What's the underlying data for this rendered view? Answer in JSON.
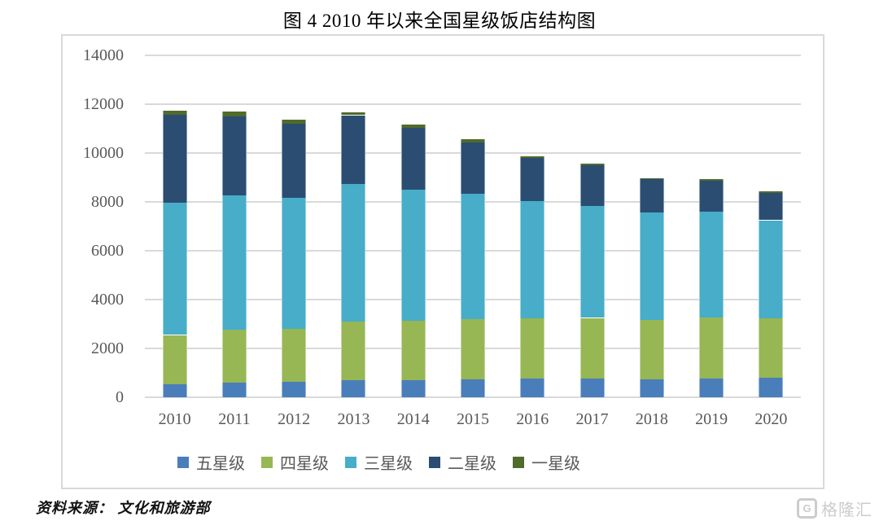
{
  "title": "图 4  2010 年以来全国星级饭店结构图",
  "source_label": "资料来源： 文化和旅游部",
  "watermark": {
    "icon": "G",
    "text": "格隆汇"
  },
  "colors": {
    "grid": "#d9d9d9",
    "frame_border": "#d9d9d9",
    "axis_text": "#595959",
    "watermark_gray": "#cccccc"
  },
  "chart_data": {
    "type": "bar",
    "stacked": true,
    "title": "图 4  2010 年以来全国星级饭店结构图",
    "xlabel": "",
    "ylabel": "",
    "categories": [
      "2010",
      "2011",
      "2012",
      "2013",
      "2014",
      "2015",
      "2016",
      "2017",
      "2018",
      "2019",
      "2020"
    ],
    "series": [
      {
        "name": "五星级",
        "color": "#4a7ebb",
        "values": [
          520,
          590,
          640,
          690,
          700,
          740,
          770,
          770,
          740,
          770,
          790
        ]
      },
      {
        "name": "四星级",
        "color": "#96b754",
        "values": [
          2030,
          2180,
          2170,
          2420,
          2440,
          2450,
          2450,
          2480,
          2430,
          2500,
          2450
        ]
      },
      {
        "name": "三星级",
        "color": "#47adc9",
        "values": [
          5420,
          5510,
          5360,
          5620,
          5370,
          5130,
          4810,
          4590,
          4390,
          4320,
          4010
        ]
      },
      {
        "name": "二星级",
        "color": "#2b4d72",
        "values": [
          3590,
          3230,
          3040,
          2820,
          2530,
          2110,
          1780,
          1650,
          1360,
          1290,
          1110
        ]
      },
      {
        "name": "一星级",
        "color": "#506b2a",
        "values": [
          190,
          190,
          150,
          130,
          140,
          130,
          70,
          80,
          60,
          70,
          60
        ]
      }
    ],
    "totals": [
      11750,
      11700,
      11360,
      11680,
      11180,
      10560,
      9880,
      9570,
      8980,
      8950,
      8420
    ],
    "ylim": [
      0,
      14000
    ],
    "y_ticks": [
      0,
      2000,
      4000,
      6000,
      8000,
      10000,
      12000,
      14000
    ],
    "grid": true,
    "legend_position": "bottom"
  }
}
